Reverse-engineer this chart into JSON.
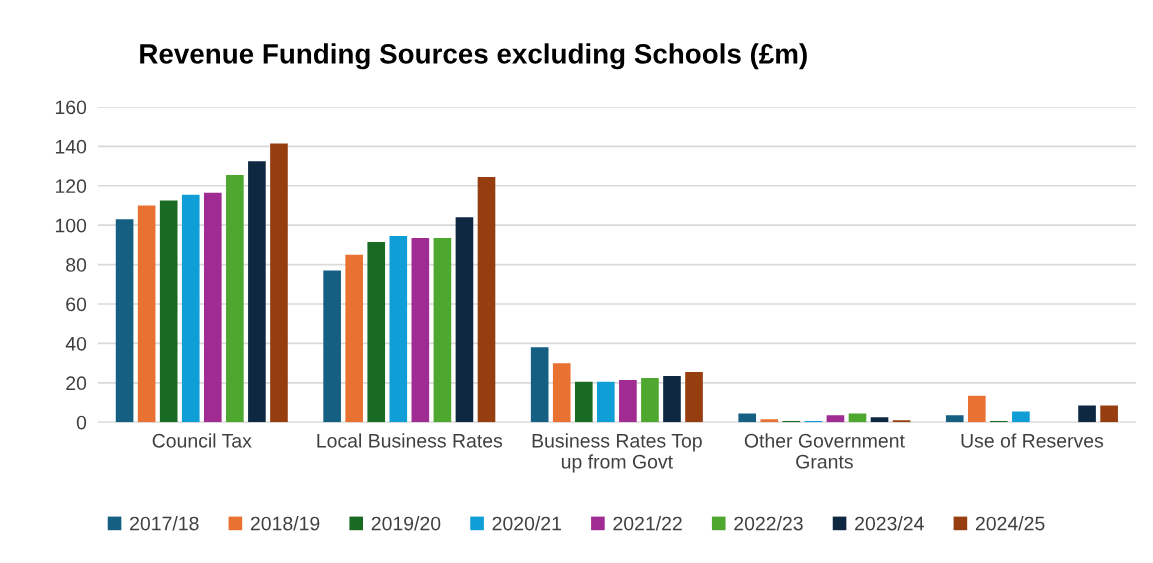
{
  "chart_data": {
    "type": "bar",
    "title": "Revenue Funding Sources excluding Schools (£m)",
    "categories": [
      "Council Tax",
      "Local Business Rates",
      "Business Rates Top\nup from Govt",
      "Other Government\nGrants",
      "Use of Reserves"
    ],
    "series": [
      {
        "name": "2017/18",
        "color": "#156082",
        "values": [
          103,
          77,
          38,
          4.5,
          3.5
        ]
      },
      {
        "name": "2018/19",
        "color": "#e97132",
        "values": [
          110,
          85,
          30,
          1.5,
          13.5
        ]
      },
      {
        "name": "2019/20",
        "color": "#196b24",
        "values": [
          112.5,
          91.5,
          20.5,
          0.6,
          0.6
        ]
      },
      {
        "name": "2020/21",
        "color": "#0f9ed5",
        "values": [
          115.5,
          94.5,
          20.5,
          0.6,
          5.5
        ]
      },
      {
        "name": "2021/22",
        "color": "#a02b93",
        "values": [
          116.5,
          93.5,
          21.5,
          3.5,
          0
        ]
      },
      {
        "name": "2022/23",
        "color": "#4ea72e",
        "values": [
          125.5,
          93.5,
          22.5,
          4.5,
          0
        ]
      },
      {
        "name": "2023/24",
        "color": "#0e2841",
        "values": [
          132.5,
          104,
          23.5,
          2.5,
          8.5
        ]
      },
      {
        "name": "2024/25",
        "color": "#973e11",
        "values": [
          141.5,
          124.5,
          25.5,
          1,
          8.5
        ]
      }
    ],
    "ylim": [
      0,
      160
    ],
    "yticks": [
      0,
      20,
      40,
      60,
      80,
      100,
      120,
      140,
      160
    ],
    "grid": "y",
    "legend": "bottom"
  }
}
